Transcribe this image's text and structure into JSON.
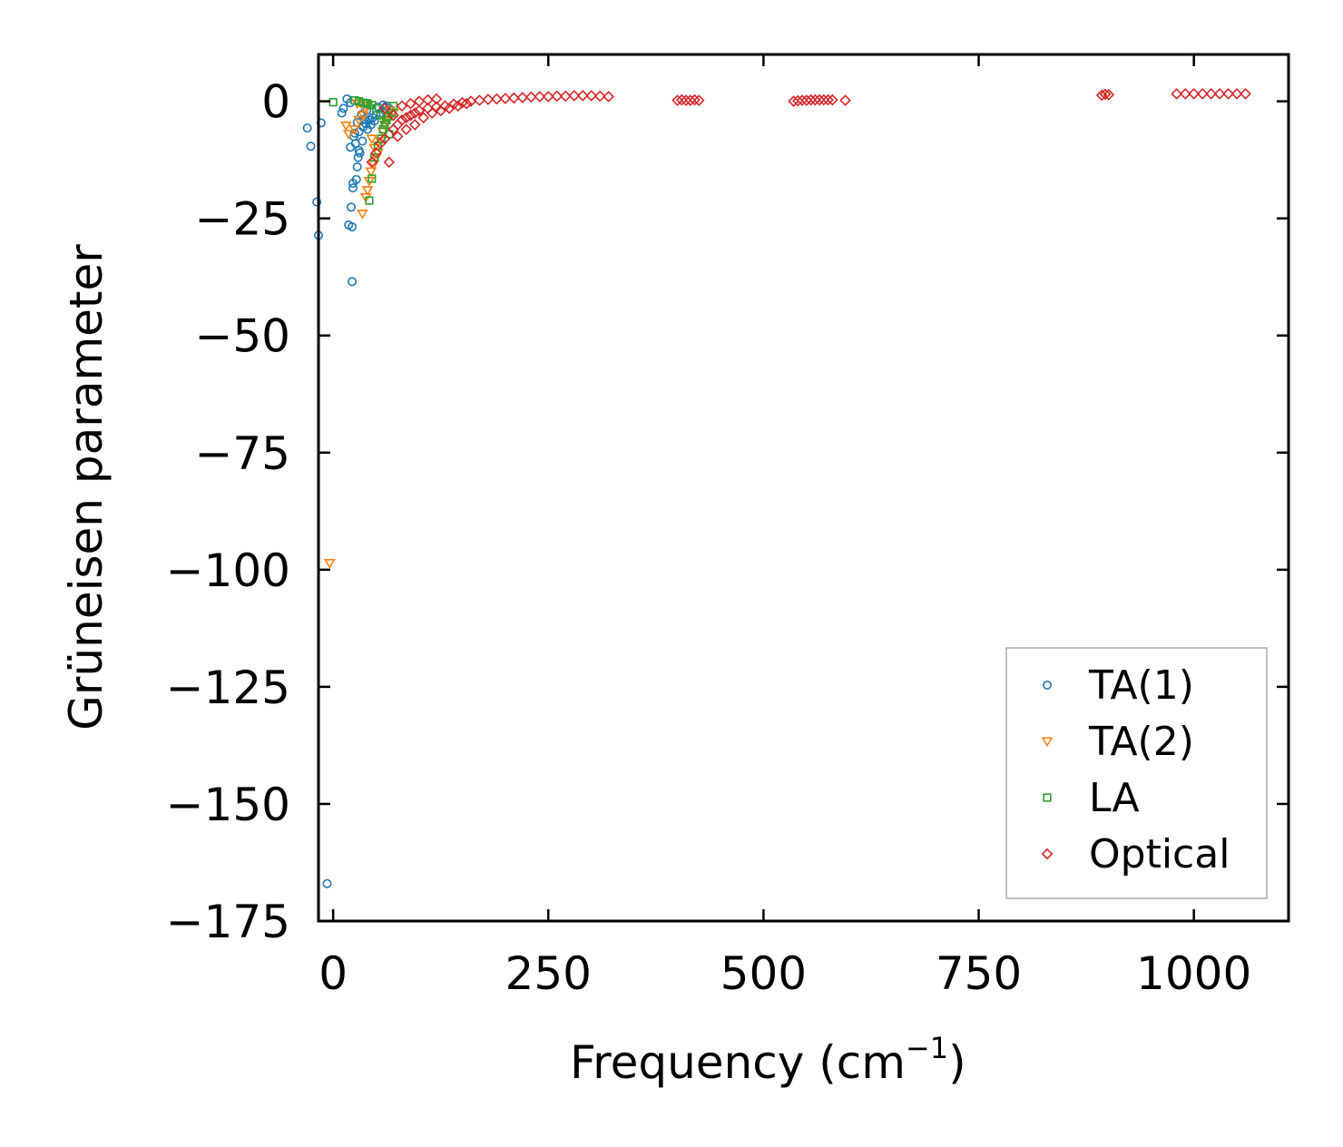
{
  "chart_data": {
    "type": "scatter",
    "title": "",
    "xlabel": "Frequency (cm",
    "xlabel_sup": "−1",
    "xlabel_suffix": ")",
    "ylabel": "Grüneisen parameter",
    "xlim": [
      -17,
      1110
    ],
    "ylim": [
      -175,
      10
    ],
    "xticks": [
      0,
      250,
      500,
      750,
      1000
    ],
    "xtick_labels": [
      "0",
      "250",
      "500",
      "750",
      "1000"
    ],
    "yticks": [
      0,
      -25,
      -50,
      -75,
      -100,
      -125,
      -150,
      -175
    ],
    "ytick_labels": [
      "0",
      "−25",
      "−50",
      "−75",
      "−100",
      "−125",
      "−150",
      "−175"
    ],
    "legend_position": "lower-right",
    "grid": false,
    "series": [
      {
        "name": "TA(1)",
        "marker": "circle",
        "color": "#1f77b4",
        "points": [
          [
            -7,
            -167
          ],
          [
            -30,
            -5.7
          ],
          [
            -26,
            -9.6
          ],
          [
            -14,
            -4.6
          ],
          [
            -19,
            -21.5
          ],
          [
            -17,
            -28.6
          ],
          [
            22,
            -38.5
          ],
          [
            18,
            -26.4
          ],
          [
            22,
            -26.8
          ],
          [
            21,
            -22.6
          ],
          [
            23,
            -17.5
          ],
          [
            23,
            -18.5
          ],
          [
            27,
            -16.7
          ],
          [
            28,
            -14.0
          ],
          [
            29,
            -12.0
          ],
          [
            30,
            -10.5
          ],
          [
            26,
            -9.0
          ],
          [
            24,
            -7.5
          ],
          [
            30,
            -6.5
          ],
          [
            35,
            -5.5
          ],
          [
            38,
            -4.8
          ],
          [
            42,
            -4.0
          ],
          [
            46,
            -3.5
          ],
          [
            50,
            -3.0
          ],
          [
            55,
            -2.5
          ],
          [
            60,
            -2.0
          ],
          [
            65,
            -1.5
          ],
          [
            10,
            -2.5
          ],
          [
            12,
            -1.5
          ],
          [
            16,
            0.5
          ],
          [
            20,
            -0.3
          ],
          [
            33,
            -2.8
          ],
          [
            36,
            -3.8
          ],
          [
            40,
            -6.0
          ],
          [
            44,
            -5.0
          ],
          [
            48,
            -4.2
          ],
          [
            34,
            -8.5
          ],
          [
            31,
            -11.0
          ],
          [
            39,
            -2.0
          ],
          [
            52,
            -1.2
          ],
          [
            58,
            -0.8
          ],
          [
            62,
            -1.0
          ],
          [
            20,
            -9.8
          ],
          [
            25,
            -6.8
          ],
          [
            28,
            -4.5
          ]
        ]
      },
      {
        "name": "TA(2)",
        "marker": "triangle-down",
        "color": "#ff7f0e",
        "points": [
          [
            -4,
            -98.6
          ],
          [
            34,
            -24.0
          ],
          [
            38,
            -20.5
          ],
          [
            40,
            -19.0
          ],
          [
            42,
            -17.0
          ],
          [
            15,
            -5.2
          ],
          [
            18,
            -7.0
          ],
          [
            25,
            -6.0
          ],
          [
            30,
            -4.0
          ],
          [
            35,
            -3.0
          ],
          [
            45,
            -8.0
          ],
          [
            48,
            -10.0
          ],
          [
            50,
            -12.0
          ],
          [
            52,
            -11.0
          ],
          [
            55,
            -8.5
          ],
          [
            58,
            -6.5
          ],
          [
            60,
            -5.0
          ],
          [
            65,
            -3.5
          ],
          [
            70,
            -2.5
          ],
          [
            44,
            -15.0
          ],
          [
            47,
            -13.5
          ],
          [
            36,
            -1.5
          ],
          [
            40,
            -1.0
          ],
          [
            28,
            -0.5
          ],
          [
            62,
            -4.2
          ],
          [
            66,
            -2.0
          ]
        ]
      },
      {
        "name": "LA",
        "marker": "square",
        "color": "#2ca02c",
        "points": [
          [
            0,
            -0.2
          ],
          [
            25,
            0.2
          ],
          [
            30,
            0.0
          ],
          [
            35,
            -0.3
          ],
          [
            40,
            -0.5
          ],
          [
            45,
            -0.8
          ],
          [
            50,
            -1.5
          ],
          [
            55,
            -3.0
          ],
          [
            60,
            -5.0
          ],
          [
            65,
            -7.0
          ],
          [
            48,
            -12.0
          ],
          [
            45,
            -16.5
          ],
          [
            42,
            -21.2
          ],
          [
            52,
            -9.5
          ],
          [
            58,
            -6.0
          ],
          [
            62,
            -4.0
          ],
          [
            68,
            -2.5
          ],
          [
            70,
            -1.0
          ],
          [
            38,
            -0.4
          ],
          [
            56,
            -8.0
          ],
          [
            64,
            -3.2
          ]
        ]
      },
      {
        "name": "Optical",
        "marker": "diamond",
        "color": "#d62728",
        "points": [
          [
            45,
            -13.0
          ],
          [
            50,
            -11.0
          ],
          [
            55,
            -9.0
          ],
          [
            60,
            -8.0
          ],
          [
            65,
            -13.0
          ],
          [
            70,
            -6.0
          ],
          [
            75,
            -5.0
          ],
          [
            80,
            -4.0
          ],
          [
            85,
            -3.5
          ],
          [
            90,
            -3.0
          ],
          [
            95,
            -2.5
          ],
          [
            100,
            -2.0
          ],
          [
            110,
            -1.5
          ],
          [
            120,
            -1.2
          ],
          [
            130,
            -1.0
          ],
          [
            140,
            -0.6
          ],
          [
            150,
            -0.3
          ],
          [
            160,
            0.0
          ],
          [
            170,
            0.2
          ],
          [
            180,
            0.4
          ],
          [
            190,
            0.5
          ],
          [
            200,
            0.6
          ],
          [
            210,
            0.7
          ],
          [
            220,
            0.8
          ],
          [
            230,
            0.9
          ],
          [
            240,
            1.0
          ],
          [
            250,
            1.0
          ],
          [
            260,
            1.1
          ],
          [
            270,
            1.1
          ],
          [
            280,
            1.2
          ],
          [
            290,
            1.2
          ],
          [
            300,
            1.2
          ],
          [
            310,
            1.1
          ],
          [
            320,
            1.0
          ],
          [
            80,
            -1.0
          ],
          [
            90,
            -0.5
          ],
          [
            100,
            0.0
          ],
          [
            110,
            0.3
          ],
          [
            120,
            0.5
          ],
          [
            60,
            -1.5
          ],
          [
            70,
            -3.0
          ],
          [
            75,
            -7.5
          ],
          [
            85,
            -6.0
          ],
          [
            95,
            -5.0
          ],
          [
            105,
            -3.5
          ],
          [
            115,
            -2.5
          ],
          [
            125,
            -2.0
          ],
          [
            135,
            -1.5
          ],
          [
            145,
            -1.0
          ],
          [
            155,
            -0.5
          ],
          [
            400,
            0.2
          ],
          [
            405,
            0.3
          ],
          [
            410,
            0.2
          ],
          [
            415,
            0.2
          ],
          [
            420,
            0.3
          ],
          [
            425,
            0.2
          ],
          [
            535,
            0.0
          ],
          [
            540,
            0.1
          ],
          [
            545,
            0.2
          ],
          [
            550,
            0.2
          ],
          [
            555,
            0.3
          ],
          [
            560,
            0.3
          ],
          [
            565,
            0.3
          ],
          [
            570,
            0.3
          ],
          [
            575,
            0.3
          ],
          [
            580,
            0.3
          ],
          [
            595,
            0.2
          ],
          [
            893,
            1.3
          ],
          [
            897,
            1.5
          ],
          [
            901,
            1.4
          ],
          [
            980,
            1.6
          ],
          [
            990,
            1.6
          ],
          [
            1000,
            1.6
          ],
          [
            1010,
            1.6
          ],
          [
            1020,
            1.6
          ],
          [
            1030,
            1.6
          ],
          [
            1040,
            1.6
          ],
          [
            1050,
            1.6
          ],
          [
            1060,
            1.6
          ]
        ]
      }
    ]
  }
}
